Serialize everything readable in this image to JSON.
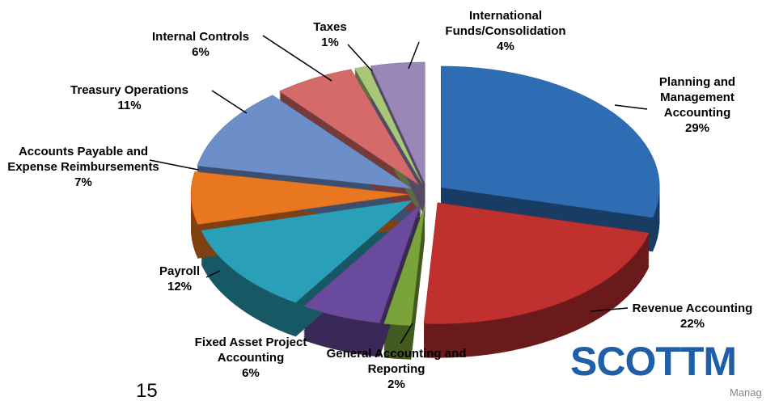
{
  "chart_data": {
    "type": "pie",
    "categories": [
      "Planning and Management Accounting",
      "Revenue Accounting",
      "General Accounting and Reporting",
      "Fixed Asset Project Accounting",
      "Payroll",
      "Accounts Payable and Expense Reimbursements",
      "Treasury Operations",
      "Internal Controls",
      "Taxes",
      "International Funds/Consolidation"
    ],
    "values": [
      29,
      22,
      2,
      6,
      12,
      7,
      11,
      6,
      1,
      4
    ],
    "value_labels": [
      "29%",
      "22%",
      "2%",
      "6%",
      "12%",
      "7%",
      "11%",
      "6%",
      "1%",
      "4%"
    ],
    "colors": [
      "#2e6db4",
      "#c0302f",
      "#7aa33a",
      "#6a4a9c",
      "#2aa0b8",
      "#e8771f",
      "#6d8fc9",
      "#d46a6a",
      "#a8c878",
      "#9a86b8"
    ]
  },
  "slide_number": "15",
  "logo": "SCOTTM",
  "logo_subtitle": "Manag"
}
